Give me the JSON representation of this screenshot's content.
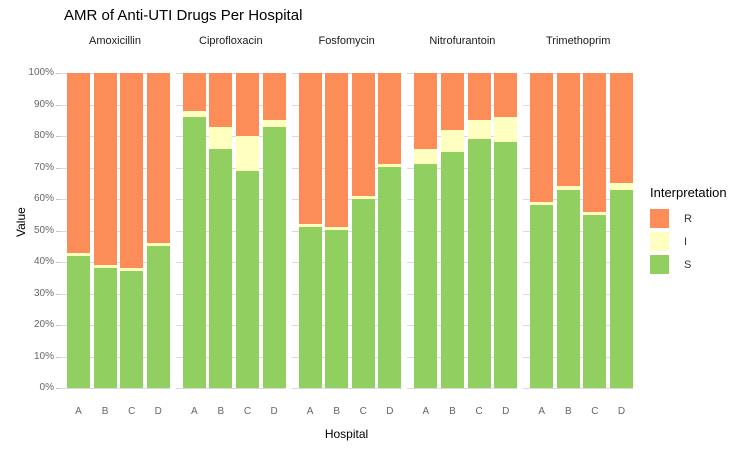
{
  "title": "AMR of Anti-UTI Drugs Per Hospital",
  "chart_data": {
    "type": "bar",
    "stacked": true,
    "percent": true,
    "faceted": true,
    "title": "AMR of Anti-UTI Drugs Per Hospital",
    "xlabel": "Hospital",
    "ylabel": "Value",
    "ylim": [
      0,
      100
    ],
    "y_ticks": [
      "0%",
      "10%",
      "20%",
      "30%",
      "40%",
      "50%",
      "60%",
      "70%",
      "80%",
      "90%",
      "100%"
    ],
    "categories": [
      "A",
      "B",
      "C",
      "D"
    ],
    "grid": true,
    "facets": [
      {
        "name": "Amoxicillin",
        "series": [
          {
            "name": "R",
            "values": [
              57,
              61,
              62,
              54
            ]
          },
          {
            "name": "I",
            "values": [
              1,
              1,
              1,
              1
            ]
          },
          {
            "name": "S",
            "values": [
              42,
              38,
              37,
              45
            ]
          }
        ]
      },
      {
        "name": "Ciprofloxacin",
        "series": [
          {
            "name": "R",
            "values": [
              12,
              17,
              20,
              15
            ]
          },
          {
            "name": "I",
            "values": [
              2,
              7,
              11,
              2
            ]
          },
          {
            "name": "S",
            "values": [
              86,
              76,
              69,
              83
            ]
          }
        ]
      },
      {
        "name": "Fosfomycin",
        "series": [
          {
            "name": "R",
            "values": [
              48,
              49,
              39,
              29
            ]
          },
          {
            "name": "I",
            "values": [
              1,
              1,
              1,
              1
            ]
          },
          {
            "name": "S",
            "values": [
              51,
              50,
              60,
              70
            ]
          }
        ]
      },
      {
        "name": "Nitrofurantoin",
        "series": [
          {
            "name": "R",
            "values": [
              24,
              18,
              15,
              14
            ]
          },
          {
            "name": "I",
            "values": [
              5,
              7,
              6,
              8
            ]
          },
          {
            "name": "S",
            "values": [
              71,
              75,
              79,
              78
            ]
          }
        ]
      },
      {
        "name": "Trimethoprim",
        "series": [
          {
            "name": "R",
            "values": [
              41,
              36,
              44,
              35
            ]
          },
          {
            "name": "I",
            "values": [
              1,
              1,
              1,
              2
            ]
          },
          {
            "name": "S",
            "values": [
              58,
              63,
              55,
              63
            ]
          }
        ]
      }
    ],
    "colors": {
      "R": "#FC8D59",
      "I": "#FFFFBF",
      "S": "#91CF60"
    },
    "legend": {
      "title": "Interpretation",
      "position": "right",
      "entries": [
        {
          "label": "R",
          "color": "#FC8D59"
        },
        {
          "label": "I",
          "color": "#FFFFBF"
        },
        {
          "label": "S",
          "color": "#91CF60"
        }
      ]
    }
  }
}
